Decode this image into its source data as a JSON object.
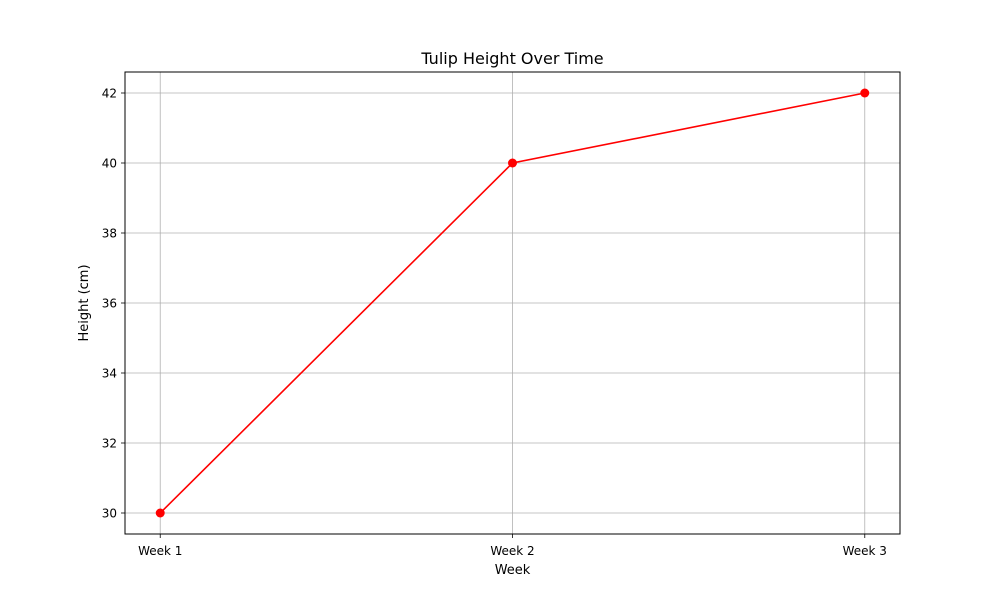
{
  "chart_data": {
    "type": "line",
    "title": "Tulip Height Over Time",
    "xlabel": "Week",
    "ylabel": "Height (cm)",
    "categories": [
      "Week 1",
      "Week 2",
      "Week 3"
    ],
    "series": [
      {
        "values": [
          30,
          40,
          42
        ],
        "color": "#ff0000",
        "marker": "circle"
      }
    ],
    "yticks": [
      30,
      32,
      34,
      36,
      38,
      40,
      42
    ],
    "ylim": [
      29.4,
      42.6
    ],
    "grid": true,
    "grid_color": "#b0b0b0",
    "legend": "none"
  }
}
